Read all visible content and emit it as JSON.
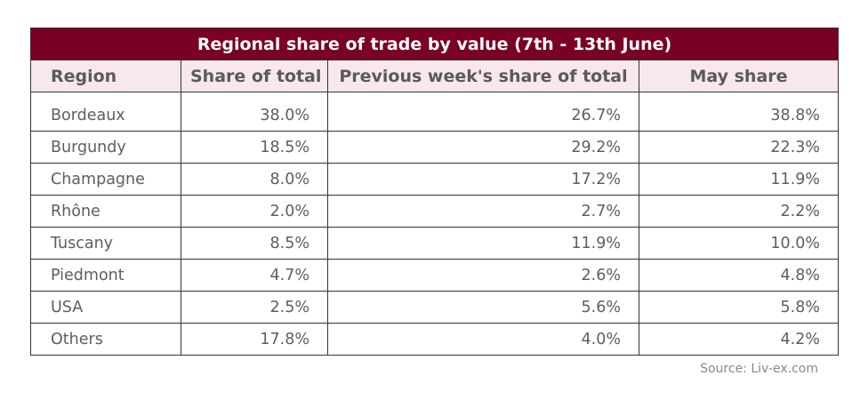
{
  "table": {
    "title": "Regional share of trade by value (7th - 13th June)",
    "headers": [
      "Region",
      "Share of total",
      "Previous week's share of total",
      "May share"
    ],
    "rows": [
      [
        "Bordeaux",
        "38.0%",
        "26.7%",
        "38.8%"
      ],
      [
        "Burgundy",
        "18.5%",
        "29.2%",
        "22.3%"
      ],
      [
        "Champagne",
        "8.0%",
        "17.2%",
        "11.9%"
      ],
      [
        "Rhône",
        "2.0%",
        "2.7%",
        "2.2%"
      ],
      [
        "Tuscany",
        "8.5%",
        "11.9%",
        "10.0%"
      ],
      [
        "Piedmont",
        "4.7%",
        "2.6%",
        "4.8%"
      ],
      [
        "USA",
        "2.5%",
        "5.6%",
        "5.8%"
      ],
      [
        "Others",
        "17.8%",
        "4.0%",
        "4.2%"
      ]
    ]
  },
  "source": "Source: Liv-ex.com",
  "colors": {
    "title_bg": "#7a0026",
    "header_bg": "#f8e8ec",
    "border": "#333333"
  }
}
